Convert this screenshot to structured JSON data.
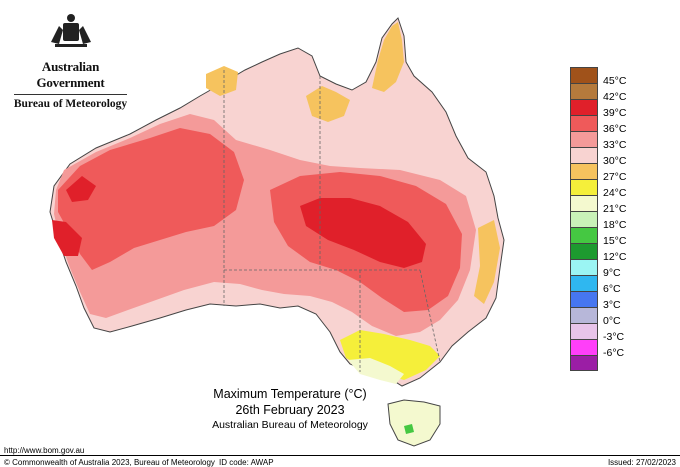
{
  "header": {
    "government": "Australian Government",
    "department": "Bureau of Meteorology"
  },
  "caption": {
    "title": "Maximum Temperature (°C)",
    "date": "26th February 2023",
    "source": "Australian Bureau of Meteorology"
  },
  "legend": [
    {
      "label": "45°C",
      "color": "#a0521a"
    },
    {
      "label": "42°C",
      "color": "#b57a3c"
    },
    {
      "label": "39°C",
      "color": "#e0202a"
    },
    {
      "label": "36°C",
      "color": "#ef5a5a"
    },
    {
      "label": "33°C",
      "color": "#f49a99"
    },
    {
      "label": "30°C",
      "color": "#f8d3d1"
    },
    {
      "label": "27°C",
      "color": "#f6c35e"
    },
    {
      "label": "24°C",
      "color": "#f5ef3a"
    },
    {
      "label": "21°C",
      "color": "#f4f9cf"
    },
    {
      "label": "18°C",
      "color": "#c9f2b8"
    },
    {
      "label": "15°C",
      "color": "#45c842"
    },
    {
      "label": "12°C",
      "color": "#1d9a2f"
    },
    {
      "label": "9°C",
      "color": "#9bf5f3"
    },
    {
      "label": "6°C",
      "color": "#2fb7f0"
    },
    {
      "label": "3°C",
      "color": "#4676f0"
    },
    {
      "label": "0°C",
      "color": "#b7b7d9"
    },
    {
      "label": "-3°C",
      "color": "#e8c4ea"
    },
    {
      "label": "-6°C",
      "color": "#ff3ff9"
    },
    {
      "label": "",
      "color": "#9b1ea5"
    }
  ],
  "footer": {
    "url": "http://www.bom.gov.au",
    "copyright": "© Commonwealth of Australia 2023, Bureau of Meteorology",
    "id_code": "ID code: AWAP",
    "issued": "Issued: 27/02/2023"
  }
}
